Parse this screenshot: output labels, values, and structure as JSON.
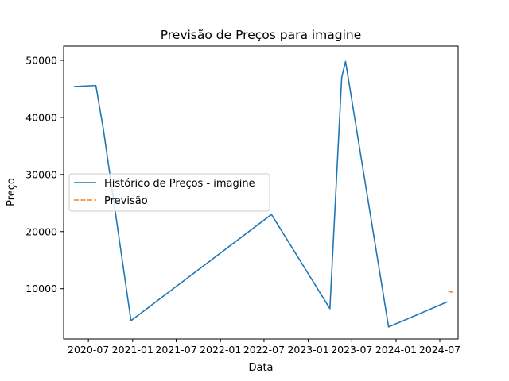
{
  "chart_data": {
    "type": "line",
    "title": "Previsão de Preços para imagine",
    "xlabel": "Data",
    "ylabel": "Preço",
    "x_axis_type": "date",
    "xlim": [
      "2020-03-20",
      "2024-09-15"
    ],
    "ylim": [
      1200,
      52500
    ],
    "x_ticks": [
      {
        "date": "2020-07-01",
        "label": "2020-07"
      },
      {
        "date": "2021-01-01",
        "label": "2021-01"
      },
      {
        "date": "2021-07-01",
        "label": "2021-07"
      },
      {
        "date": "2022-01-01",
        "label": "2022-01"
      },
      {
        "date": "2022-07-01",
        "label": "2022-07"
      },
      {
        "date": "2023-01-01",
        "label": "2023-01"
      },
      {
        "date": "2023-07-01",
        "label": "2023-07"
      },
      {
        "date": "2024-01-01",
        "label": "2024-01"
      },
      {
        "date": "2024-07-01",
        "label": "2024-07"
      }
    ],
    "y_ticks": [
      {
        "value": 10000,
        "label": "10000"
      },
      {
        "value": 20000,
        "label": "20000"
      },
      {
        "value": 30000,
        "label": "30000"
      },
      {
        "value": 40000,
        "label": "40000"
      },
      {
        "value": 50000,
        "label": "50000"
      }
    ],
    "grid": false,
    "legend": {
      "position": "center-left"
    },
    "series": [
      {
        "name": "Histórico de Preços - imagine",
        "color": "#1f77b4",
        "style": "solid",
        "points": [
          {
            "x": "2020-05-01",
            "y": 45400
          },
          {
            "x": "2020-08-01",
            "y": 45600
          },
          {
            "x": "2020-09-01",
            "y": 38000
          },
          {
            "x": "2020-12-25",
            "y": 4400
          },
          {
            "x": "2022-08-01",
            "y": 23000
          },
          {
            "x": "2023-04-01",
            "y": 6500
          },
          {
            "x": "2023-05-20",
            "y": 47000
          },
          {
            "x": "2023-06-05",
            "y": 49800
          },
          {
            "x": "2023-12-01",
            "y": 3300
          },
          {
            "x": "2024-08-01",
            "y": 7700
          }
        ]
      },
      {
        "name": "Previsão",
        "color": "#ff7f0e",
        "style": "dashed",
        "points": [
          {
            "x": "2024-08-05",
            "y": 9600
          },
          {
            "x": "2024-08-25",
            "y": 9300
          }
        ]
      }
    ]
  }
}
